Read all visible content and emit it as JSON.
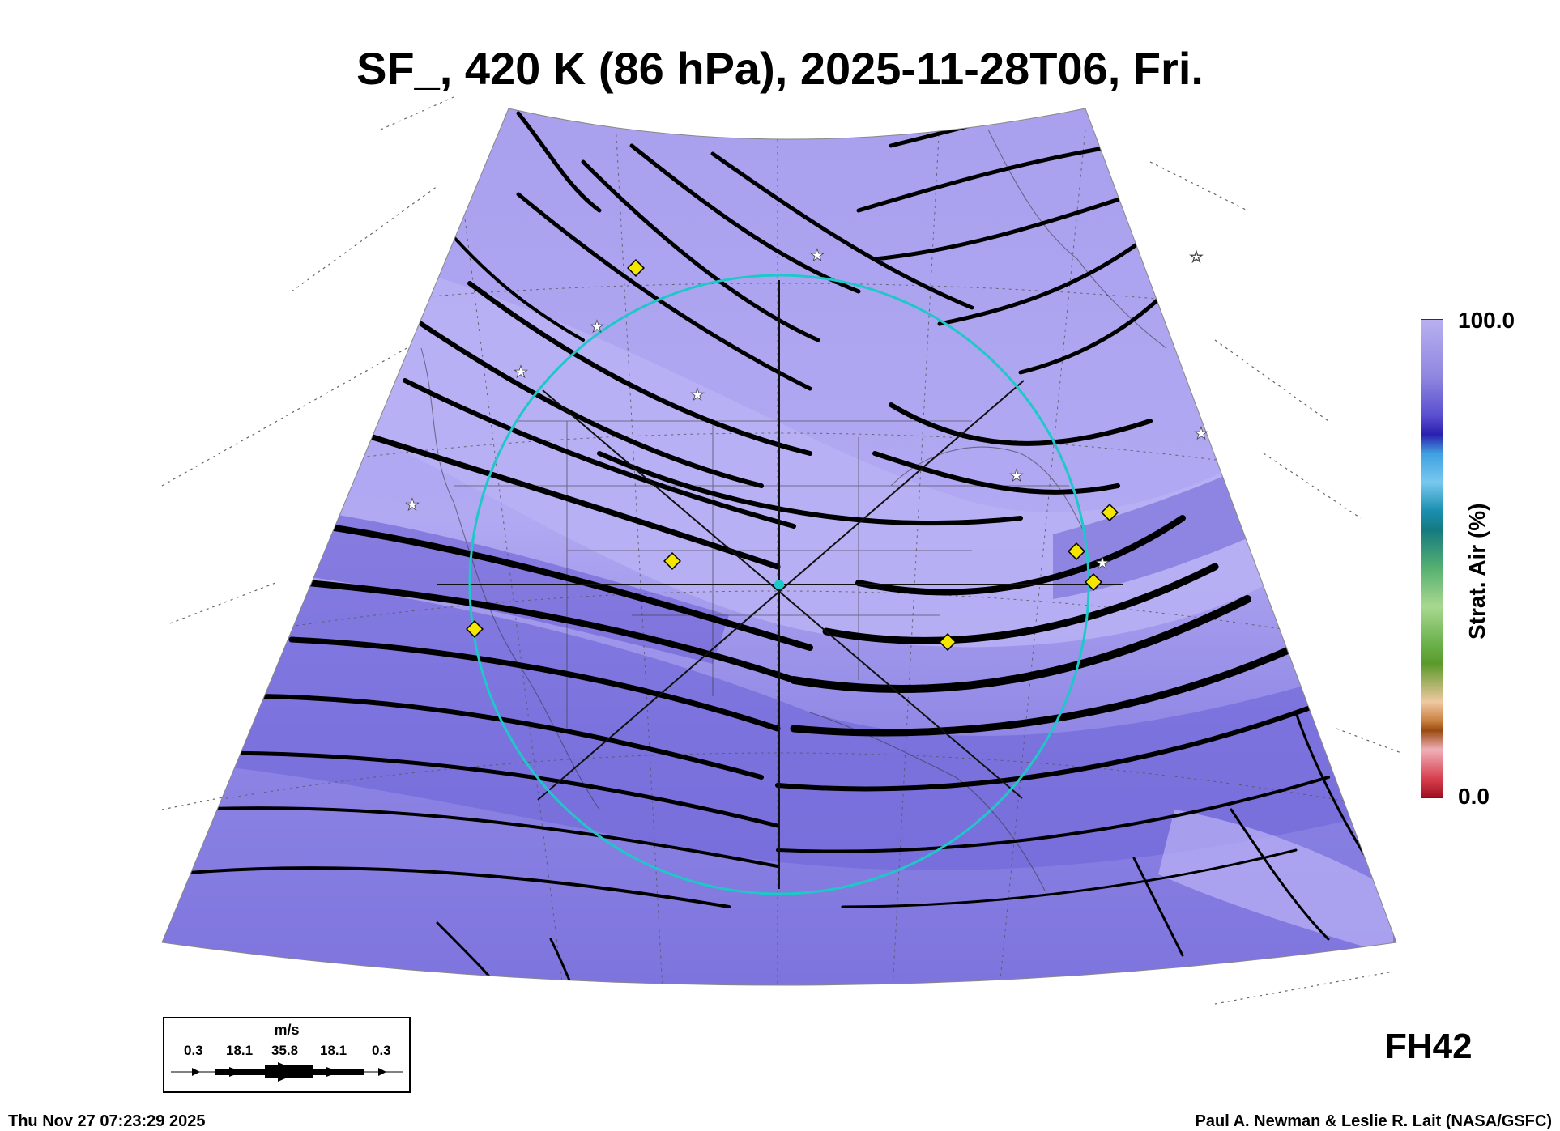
{
  "title": "SF_, 420 K (86 hPa), 2025-11-28T06, Fri.",
  "colorbar": {
    "title": "Strat. Air (%)",
    "max_label": "100.0",
    "min_label": "0.0"
  },
  "forecast_hour": "FH42",
  "wind_legend": {
    "unit": "m/s",
    "values": [
      "0.3",
      "18.1",
      "35.8",
      "18.1",
      "0.3"
    ]
  },
  "footer": {
    "timestamp": "Thu Nov 27 07:23:29 2025",
    "credit": "Paul A. Newman & Leslie R. Lait (NASA/GSFC)"
  },
  "colors": {
    "field_light": "#b3abf2",
    "field_mid": "#8f86e6",
    "field_dark": "#6e63d8",
    "ring": "#1ec8c8",
    "marker_diamond": "#f5e600",
    "streamline": "#000000"
  },
  "icons": [
    "yellow-diamond-marker",
    "white-star-marker",
    "streamline-arrow"
  ]
}
